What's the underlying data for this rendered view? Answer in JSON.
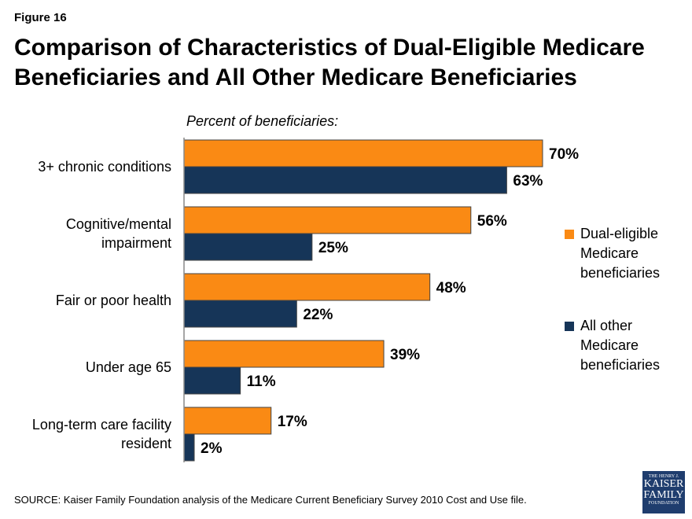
{
  "figure_label": "Figure 16",
  "title": "Comparison of Characteristics of Dual-Eligible Medicare Beneficiaries and All Other Medicare Beneficiaries",
  "source": "SOURCE: Kaiser Family Foundation analysis of the Medicare Current Beneficiary Survey 2010 Cost and Use file.",
  "logo": {
    "line1": "THE HENRY J.",
    "line2": "KAISER",
    "line3": "FAMILY",
    "line4": "FOUNDATION"
  },
  "chart_data": {
    "type": "bar",
    "orientation": "horizontal",
    "subtitle": "Percent of beneficiaries:",
    "categories": [
      "3+ chronic conditions",
      "Cognitive/mental impairment",
      "Fair or poor health",
      "Under age 65",
      "Long-term care facility resident"
    ],
    "series": [
      {
        "name": "Dual-eligible Medicare beneficiaries",
        "color": "#fa8a14",
        "values": [
          70,
          56,
          48,
          39,
          17
        ],
        "labels": [
          "70%",
          "56%",
          "48%",
          "39%",
          "17%"
        ]
      },
      {
        "name": "All other Medicare beneficiaries",
        "color": "#163558",
        "values": [
          63,
          25,
          22,
          11,
          2
        ],
        "labels": [
          "63%",
          "25%",
          "22%",
          "11%",
          "2%"
        ]
      }
    ],
    "legend": "right",
    "grid": false
  }
}
